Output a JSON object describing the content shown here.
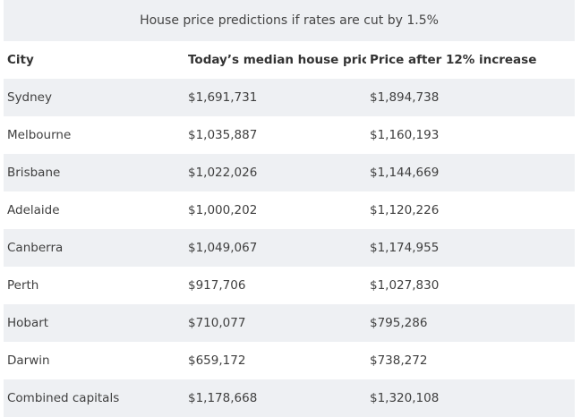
{
  "caption": "House price predictions if rates are cut by 1.5%",
  "headers": [
    "City",
    "Today’s median house price",
    "Price after 12% increase"
  ],
  "rows": [
    [
      "Sydney",
      "$1,691,731",
      "$1,894,738"
    ],
    [
      "Melbourne",
      "$1,035,887",
      "$1,160,193"
    ],
    [
      "Brisbane",
      "$1,022,026",
      "$1,144,669"
    ],
    [
      "Adelaide",
      "$1,000,202",
      "$1,120,226"
    ],
    [
      "Canberra",
      "$1,049,067",
      "$1,174,955"
    ],
    [
      "Perth",
      "$917,706",
      "$1,027,830"
    ],
    [
      "Hobart",
      "$710,077",
      "$795,286"
    ],
    [
      "Darwin",
      "$659,172",
      "$738,272"
    ],
    [
      "Combined capitals",
      "$1,178,668",
      "$1,320,108"
    ]
  ]
}
